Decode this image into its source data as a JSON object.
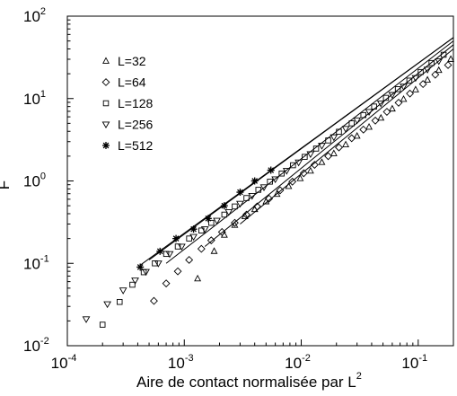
{
  "chart_data": {
    "type": "scatter",
    "xlabel": "Aire de contact normalisée par L",
    "xlabel_superscript": "2",
    "ylabel": "F",
    "x_scale": "log",
    "y_scale": "log",
    "xlim": [
      0.0001,
      0.2
    ],
    "ylim": [
      0.01,
      100
    ],
    "x_ticks": [
      {
        "value": 0.0001,
        "base": "10",
        "exp": "-4"
      },
      {
        "value": 0.001,
        "base": "10",
        "exp": "-3"
      },
      {
        "value": 0.01,
        "base": "10",
        "exp": "-2"
      },
      {
        "value": 0.1,
        "base": "10",
        "exp": "-1"
      }
    ],
    "y_ticks": [
      {
        "value": 0.01,
        "base": "10",
        "exp": "-2"
      },
      {
        "value": 0.1,
        "base": "10",
        "exp": "-1"
      },
      {
        "value": 1,
        "base": "10",
        "exp": "0"
      },
      {
        "value": 10,
        "base": "10",
        "exp": "1"
      },
      {
        "value": 100,
        "base": "10",
        "exp": "2"
      }
    ],
    "grid": false,
    "legend_position": "top-left",
    "series": [
      {
        "name": "L=32",
        "marker": "triangle-up",
        "x": [
          0.0013,
          0.0018,
          0.0022,
          0.0027,
          0.0033,
          0.004,
          0.005,
          0.0062,
          0.0078,
          0.0098,
          0.012,
          0.015,
          0.019,
          0.024,
          0.03,
          0.038,
          0.048,
          0.06,
          0.075,
          0.095,
          0.12,
          0.15,
          0.19
        ],
        "y": [
          0.065,
          0.14,
          0.22,
          0.29,
          0.37,
          0.45,
          0.56,
          0.69,
          0.86,
          1.07,
          1.32,
          1.68,
          2.15,
          2.75,
          3.5,
          4.5,
          5.8,
          7.5,
          9.8,
          12.8,
          16.8,
          22.0,
          30.0
        ],
        "fit_x": [
          0.003,
          0.2
        ],
        "fit_y": [
          0.3,
          40
        ]
      },
      {
        "name": "L=64",
        "marker": "diamond",
        "x": [
          0.00055,
          0.0007,
          0.00088,
          0.0011,
          0.0014,
          0.0017,
          0.0021,
          0.0027,
          0.0034,
          0.0042,
          0.0053,
          0.0066,
          0.0084,
          0.0105,
          0.013,
          0.017,
          0.021,
          0.027,
          0.034,
          0.043,
          0.054,
          0.068,
          0.085,
          0.11,
          0.14,
          0.18
        ],
        "y": [
          0.035,
          0.057,
          0.08,
          0.11,
          0.15,
          0.19,
          0.24,
          0.31,
          0.39,
          0.49,
          0.61,
          0.77,
          0.98,
          1.24,
          1.57,
          2.0,
          2.55,
          3.3,
          4.2,
          5.4,
          6.9,
          8.9,
          11.5,
          15.0,
          19.5,
          25.5
        ],
        "fit_x": [
          0.0015,
          0.2
        ],
        "fit_y": [
          0.16,
          45
        ]
      },
      {
        "name": "L=128",
        "marker": "square",
        "x": [
          0.0002,
          0.00028,
          0.00036,
          0.00045,
          0.00056,
          0.0007,
          0.00088,
          0.0011,
          0.0014,
          0.0017,
          0.0022,
          0.0027,
          0.0034,
          0.0043,
          0.0054,
          0.0068,
          0.0085,
          0.0107,
          0.0134,
          0.017,
          0.021,
          0.027,
          0.034,
          0.042,
          0.053,
          0.067,
          0.084,
          0.105,
          0.13,
          0.165
        ],
        "y": [
          0.018,
          0.034,
          0.055,
          0.078,
          0.1,
          0.13,
          0.16,
          0.2,
          0.25,
          0.31,
          0.39,
          0.49,
          0.62,
          0.78,
          0.98,
          1.23,
          1.55,
          1.96,
          2.47,
          3.1,
          3.95,
          5.0,
          6.3,
          8.0,
          10.2,
          13.0,
          16.5,
          21.0,
          27.0,
          34.0
        ],
        "fit_x": [
          0.0007,
          0.2
        ],
        "fit_y": [
          0.1,
          50
        ]
      },
      {
        "name": "L=256",
        "marker": "triangle-down",
        "x": [
          0.000145,
          0.00022,
          0.0003,
          0.00038,
          0.00047,
          0.0006,
          0.00075,
          0.00095,
          0.0012,
          0.0015,
          0.0019,
          0.0024,
          0.003,
          0.0038,
          0.0048,
          0.006,
          0.0075,
          0.0095,
          0.012,
          0.015,
          0.019,
          0.024,
          0.03,
          0.038,
          0.048,
          0.06,
          0.075,
          0.095,
          0.12,
          0.15
        ],
        "y": [
          0.021,
          0.032,
          0.047,
          0.062,
          0.079,
          0.1,
          0.13,
          0.16,
          0.21,
          0.26,
          0.33,
          0.42,
          0.53,
          0.66,
          0.84,
          1.05,
          1.33,
          1.68,
          2.12,
          2.68,
          3.4,
          4.3,
          5.45,
          6.9,
          8.75,
          11.1,
          14.0,
          17.8,
          22.5,
          28.5
        ],
        "fit_x": [
          0.0005,
          0.2
        ],
        "fit_y": [
          0.11,
          55
        ]
      },
      {
        "name": "L=512",
        "marker": "asterisk",
        "x": [
          0.00042,
          0.00062,
          0.00085,
          0.0012,
          0.0016,
          0.0022,
          0.003,
          0.004,
          0.0055
        ],
        "y": [
          0.09,
          0.14,
          0.2,
          0.26,
          0.35,
          0.5,
          0.73,
          1.0,
          1.35
        ],
        "fit_x": [
          0.00042,
          0.2
        ],
        "fit_y": [
          0.095,
          55
        ]
      }
    ]
  }
}
